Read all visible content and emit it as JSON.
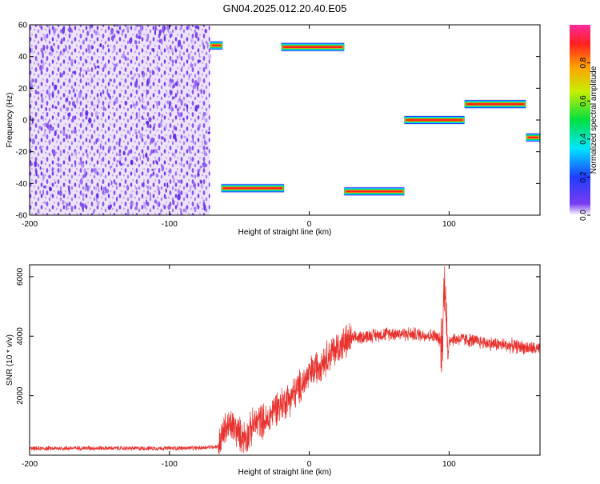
{
  "title": "GN04.2025.012.20.40.E05",
  "colors": {
    "snr_line": "#e8302c",
    "spec_bg": "#7a3cf0",
    "frame": "#000000"
  },
  "chart_data": [
    {
      "type": "heatmap",
      "xlabel": "Height of straight line (km)",
      "ylabel": "Frequency (Hz)",
      "xlim": [
        -200,
        165
      ],
      "ylim": [
        -60,
        60
      ],
      "xticks": [
        -200,
        -100,
        0,
        100
      ],
      "yticks": [
        -60,
        -40,
        -20,
        0,
        20,
        40,
        60
      ],
      "noise_region": {
        "x": [
          -200,
          -71
        ],
        "y": [
          -60,
          60
        ]
      },
      "tracks": [
        {
          "x0": -71,
          "x1": -62,
          "y": 47
        },
        {
          "x0": -63,
          "x1": -18,
          "y": -43
        },
        {
          "x0": -20,
          "x1": 25,
          "y": 46
        },
        {
          "x0": 25,
          "x1": 68,
          "y": -45
        },
        {
          "x0": 68,
          "x1": 111,
          "y": 0
        },
        {
          "x0": 111,
          "x1": 155,
          "y": 10
        },
        {
          "x0": 155,
          "x1": 165,
          "y": -11
        }
      ],
      "colorbar": {
        "label": "Normalized spectral amplitude",
        "range": [
          0,
          1
        ],
        "ticks": [
          "0.0",
          "0.2",
          "0.4",
          "0.6",
          "0.8"
        ]
      }
    },
    {
      "type": "line",
      "xlabel": "Height of straight line (km)",
      "ylabel": "SNR (10 * v/v)",
      "xlim": [
        -200,
        165
      ],
      "ylim": [
        0,
        6400
      ],
      "xticks": [
        -200,
        -100,
        0,
        100
      ],
      "yticks": [
        2000,
        4000,
        6000
      ],
      "series": [
        {
          "x": [
            -200,
            -160,
            -120,
            -80,
            -65,
            -60,
            -55,
            -50,
            -45,
            -40,
            -35,
            -30,
            -25,
            -20,
            -15,
            -10,
            -5,
            0,
            10,
            20,
            30,
            40,
            60,
            80,
            90,
            95,
            97,
            99,
            100,
            110,
            130,
            150,
            165
          ],
          "y": [
            220,
            240,
            230,
            240,
            300,
            900,
            1000,
            700,
            600,
            1000,
            1200,
            1100,
            1600,
            1700,
            1900,
            2100,
            2400,
            2700,
            3200,
            3600,
            3900,
            4000,
            4100,
            4050,
            4000,
            3800,
            6200,
            3100,
            3900,
            3900,
            3750,
            3650,
            3550
          ]
        }
      ]
    }
  ]
}
